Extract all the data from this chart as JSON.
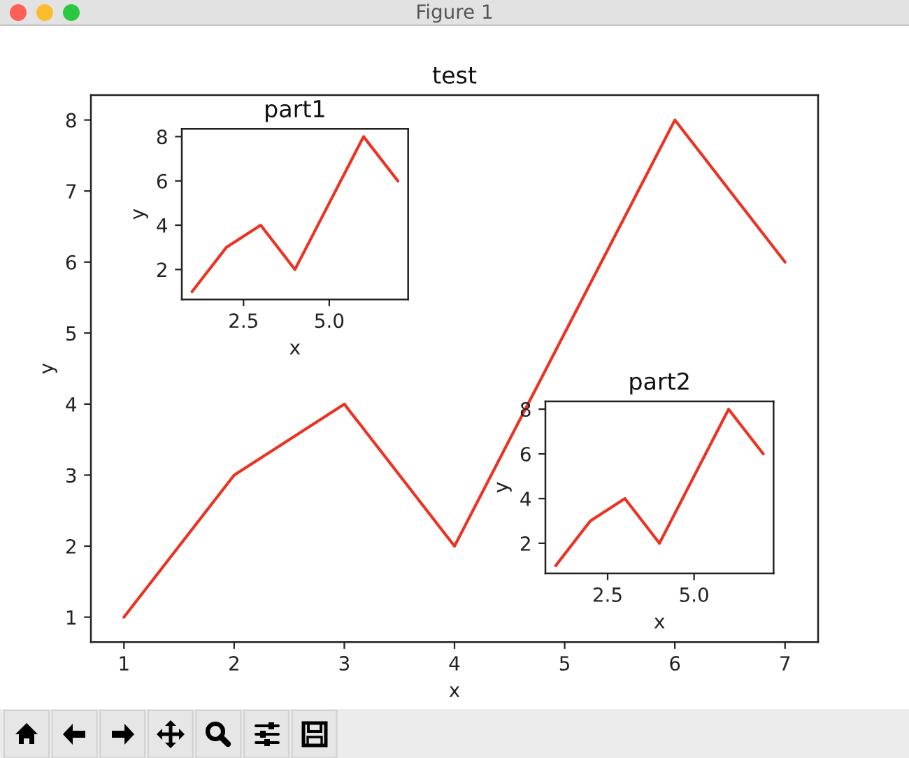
{
  "chart_data": [
    {
      "type": "line",
      "title": "test",
      "xlabel": "x",
      "ylabel": "y",
      "x": [
        1,
        2,
        3,
        4,
        5,
        6,
        7
      ],
      "values": [
        1,
        3,
        4,
        2,
        5,
        8,
        6
      ],
      "color": "#ec3323",
      "xlim": [
        0.7,
        7.3
      ],
      "ylim": [
        0.65,
        8.35
      ],
      "xticks": [
        1,
        2,
        3,
        4,
        5,
        6,
        7
      ],
      "yticks": [
        1,
        2,
        3,
        4,
        5,
        6,
        7,
        8
      ],
      "annotations": [
        "Figure 1"
      ]
    },
    {
      "type": "line",
      "title": "part1",
      "xlabel": "x",
      "ylabel": "y",
      "x": [
        1,
        2,
        3,
        4,
        5,
        6,
        7
      ],
      "values": [
        1,
        3,
        4,
        2,
        5,
        8,
        6
      ],
      "color": "#ec3323",
      "xlim": [
        0.7,
        7.3
      ],
      "ylim": [
        0.65,
        8.35
      ],
      "xticks": [
        2.5,
        {
          "value": 5,
          "label": "5.0"
        }
      ],
      "yticks": [
        2,
        4,
        6,
        8
      ]
    },
    {
      "type": "line",
      "title": "part2",
      "xlabel": "x",
      "ylabel": "y",
      "x": [
        1,
        2,
        3,
        4,
        5,
        6,
        7
      ],
      "values": [
        1,
        3,
        4,
        2,
        5,
        8,
        6
      ],
      "color": "#ec3323",
      "xlim": [
        0.7,
        7.3
      ],
      "ylim": [
        0.65,
        8.35
      ],
      "xticks": [
        2.5,
        {
          "value": 5,
          "label": "5.0"
        }
      ],
      "yticks": [
        2,
        4,
        6,
        8
      ]
    }
  ]
}
